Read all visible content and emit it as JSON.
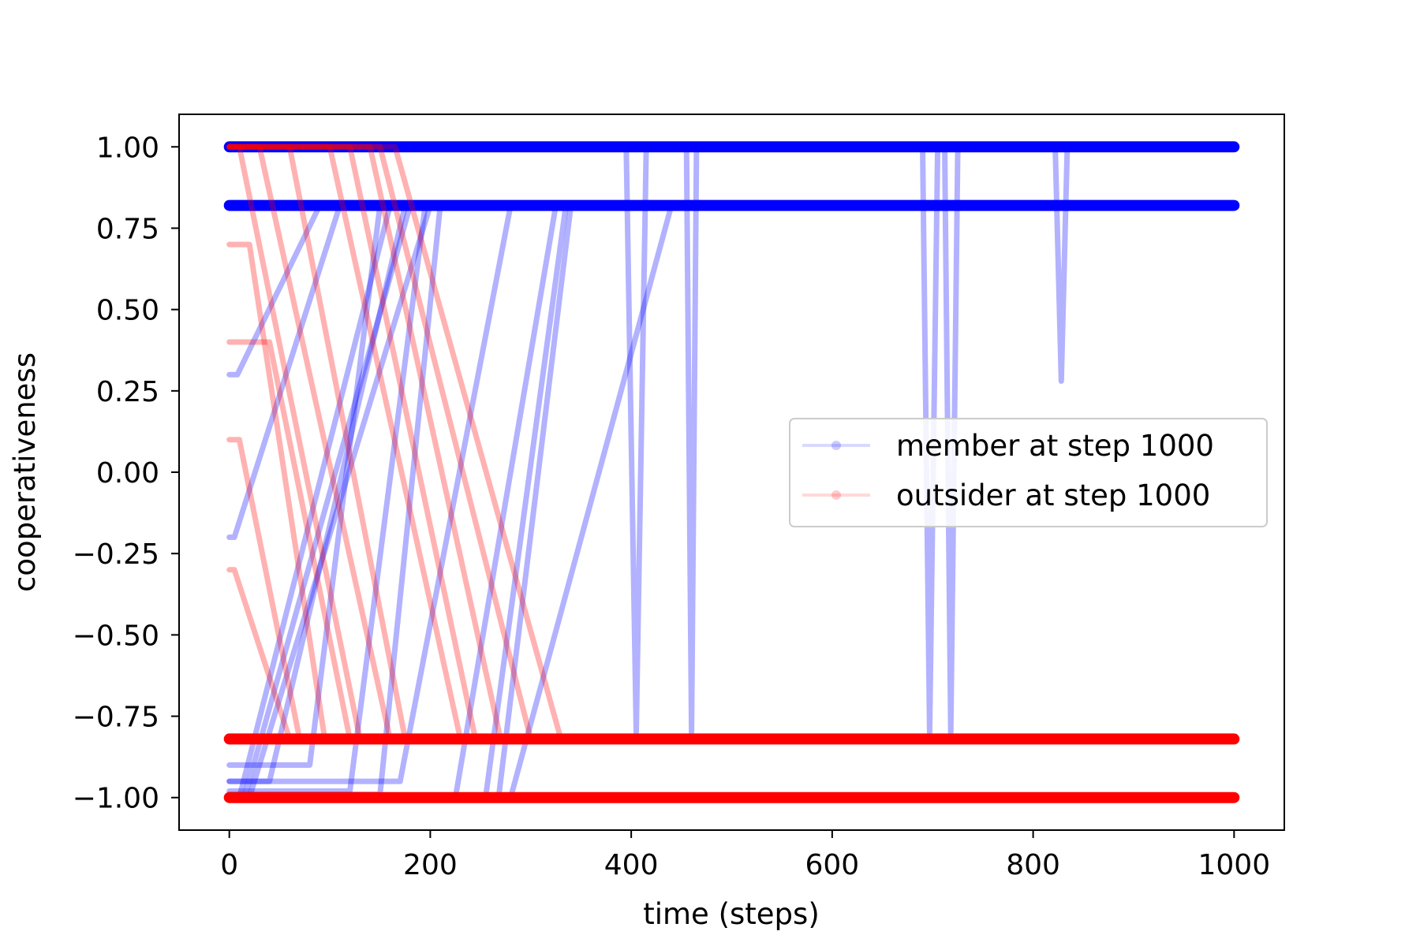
{
  "chart_data": {
    "type": "line",
    "title": "",
    "xlabel": "time (steps)",
    "ylabel": "cooperativeness",
    "xlim": [
      -50,
      1050
    ],
    "ylim": [
      -1.1,
      1.1
    ],
    "xticks": [
      0,
      200,
      400,
      600,
      800,
      1000
    ],
    "yticks": [
      1.0,
      0.75,
      0.5,
      0.25,
      0.0,
      -0.25,
      -0.5,
      -0.75,
      -1.0
    ],
    "xtick_labels": [
      "0",
      "200",
      "400",
      "600",
      "800",
      "1000"
    ],
    "ytick_labels": [
      "1.00",
      "0.75",
      "0.50",
      "0.25",
      "0.00",
      "−0.25",
      "−0.50",
      "−0.75",
      "−1.00"
    ],
    "grid": false,
    "legend_position": "center-right",
    "series": [
      {
        "name": "member at step 1000",
        "color": "#0000ff",
        "trajectories": [
          {
            "x": [
              0,
              1000
            ],
            "y": [
              1.0,
              1.0
            ]
          },
          {
            "x": [
              0,
              1000
            ],
            "y": [
              0.82,
              0.82
            ]
          },
          {
            "x": [
              0,
              10,
              160,
              1000
            ],
            "y": [
              -1.0,
              -1.0,
              0.82,
              0.82
            ]
          },
          {
            "x": [
              0,
              15,
              180,
              1000
            ],
            "y": [
              -1.0,
              -1.0,
              0.82,
              0.82
            ]
          },
          {
            "x": [
              0,
              20,
              200,
              1000
            ],
            "y": [
              -1.0,
              -1.0,
              0.82,
              0.82
            ]
          },
          {
            "x": [
              0,
              40,
              175,
              1000
            ],
            "y": [
              -0.95,
              -0.95,
              0.82,
              0.82
            ]
          },
          {
            "x": [
              0,
              80,
              150,
              1000
            ],
            "y": [
              -0.9,
              -0.9,
              0.82,
              0.82
            ]
          },
          {
            "x": [
              0,
              120,
              195,
              1000
            ],
            "y": [
              -0.98,
              -0.98,
              0.82,
              0.82
            ]
          },
          {
            "x": [
              0,
              150,
              210,
              1000
            ],
            "y": [
              -0.99,
              -0.99,
              0.82,
              0.82
            ]
          },
          {
            "x": [
              0,
              170,
              280,
              1000
            ],
            "y": [
              -0.95,
              -0.95,
              0.82,
              0.82
            ]
          },
          {
            "x": [
              0,
              225,
              325,
              1000
            ],
            "y": [
              -1.0,
              -1.0,
              0.82,
              0.82
            ]
          },
          {
            "x": [
              0,
              255,
              335,
              1000
            ],
            "y": [
              -1.0,
              -1.0,
              0.82,
              0.82
            ]
          },
          {
            "x": [
              0,
              268,
              340,
              1000
            ],
            "y": [
              -1.0,
              -1.0,
              0.82,
              0.82
            ]
          },
          {
            "x": [
              0,
              280,
              440,
              1000
            ],
            "y": [
              -1.0,
              -1.0,
              0.82,
              0.82
            ]
          },
          {
            "x": [
              0,
              5,
              110,
              1000
            ],
            "y": [
              -0.2,
              -0.2,
              0.82,
              0.82
            ]
          },
          {
            "x": [
              0,
              8,
              90,
              1000
            ],
            "y": [
              0.3,
              0.3,
              0.82,
              0.82
            ]
          },
          {
            "x": [
              0,
              395,
              405,
              415,
              1000
            ],
            "y": [
              1.0,
              1.0,
              -0.8,
              1.0,
              1.0
            ]
          },
          {
            "x": [
              0,
              455,
              460,
              465,
              1000
            ],
            "y": [
              1.0,
              1.0,
              -0.8,
              1.0,
              1.0
            ]
          },
          {
            "x": [
              0,
              690,
              697,
              705,
              1000
            ],
            "y": [
              1.0,
              1.0,
              -0.8,
              1.0,
              1.0
            ]
          },
          {
            "x": [
              0,
              712,
              718,
              725,
              1000
            ],
            "y": [
              1.0,
              1.0,
              -0.8,
              1.0,
              1.0
            ]
          },
          {
            "x": [
              0,
              822,
              828,
              834,
              1000
            ],
            "y": [
              1.0,
              1.0,
              0.28,
              1.0,
              1.0
            ]
          }
        ]
      },
      {
        "name": "outsider at step 1000",
        "color": "#ff0000",
        "trajectories": [
          {
            "x": [
              0,
              1000
            ],
            "y": [
              -1.0,
              -1.0
            ]
          },
          {
            "x": [
              0,
              1000
            ],
            "y": [
              -0.82,
              -0.82
            ]
          },
          {
            "x": [
              0,
              10,
              130,
              1000
            ],
            "y": [
              1.0,
              1.0,
              -0.82,
              -0.82
            ]
          },
          {
            "x": [
              0,
              30,
              160,
              1000
            ],
            "y": [
              1.0,
              1.0,
              -0.82,
              -0.82
            ]
          },
          {
            "x": [
              0,
              60,
              175,
              1000
            ],
            "y": [
              1.0,
              1.0,
              -0.82,
              -0.82
            ]
          },
          {
            "x": [
              0,
              100,
              230,
              1000
            ],
            "y": [
              1.0,
              1.0,
              -0.82,
              -0.82
            ]
          },
          {
            "x": [
              0,
              120,
              245,
              1000
            ],
            "y": [
              1.0,
              1.0,
              -0.82,
              -0.82
            ]
          },
          {
            "x": [
              0,
              140,
              270,
              1000
            ],
            "y": [
              1.0,
              1.0,
              -0.82,
              -0.82
            ]
          },
          {
            "x": [
              0,
              150,
              300,
              1000
            ],
            "y": [
              1.0,
              1.0,
              -0.82,
              -0.82
            ]
          },
          {
            "x": [
              0,
              165,
              330,
              1000
            ],
            "y": [
              1.0,
              1.0,
              -0.82,
              -0.82
            ]
          },
          {
            "x": [
              0,
              20,
              95,
              1000
            ],
            "y": [
              0.7,
              0.7,
              -0.82,
              -0.82
            ]
          },
          {
            "x": [
              0,
              40,
              120,
              1000
            ],
            "y": [
              0.4,
              0.4,
              -0.82,
              -0.82
            ]
          },
          {
            "x": [
              0,
              10,
              70,
              1000
            ],
            "y": [
              0.1,
              0.1,
              -0.82,
              -0.82
            ]
          },
          {
            "x": [
              0,
              5,
              60,
              1000
            ],
            "y": [
              -0.3,
              -0.3,
              -0.82,
              -0.82
            ]
          }
        ]
      }
    ]
  }
}
